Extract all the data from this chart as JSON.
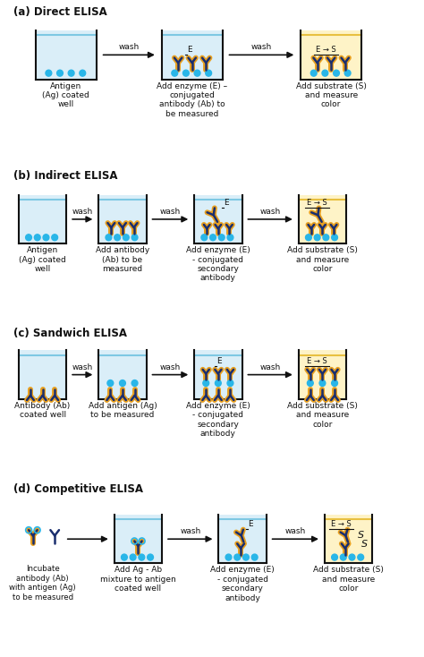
{
  "bg_color": "#ffffff",
  "well_fill_blue": "#daeef8",
  "well_fill_yellow": "#fef3c7",
  "water_line_blue": "#7ec8e3",
  "water_line_yellow": "#e8c040",
  "well_border": "#111111",
  "ab_dark": "#1a2e6e",
  "ab_yellow": "#e8a020",
  "dot_color": "#29b6e8",
  "text_color": "#111111",
  "section_labels": [
    "(a) Direct ELISA",
    "(b) Indirect ELISA",
    "(c) Sandwich ELISA",
    "(d) Competitive ELISA"
  ]
}
